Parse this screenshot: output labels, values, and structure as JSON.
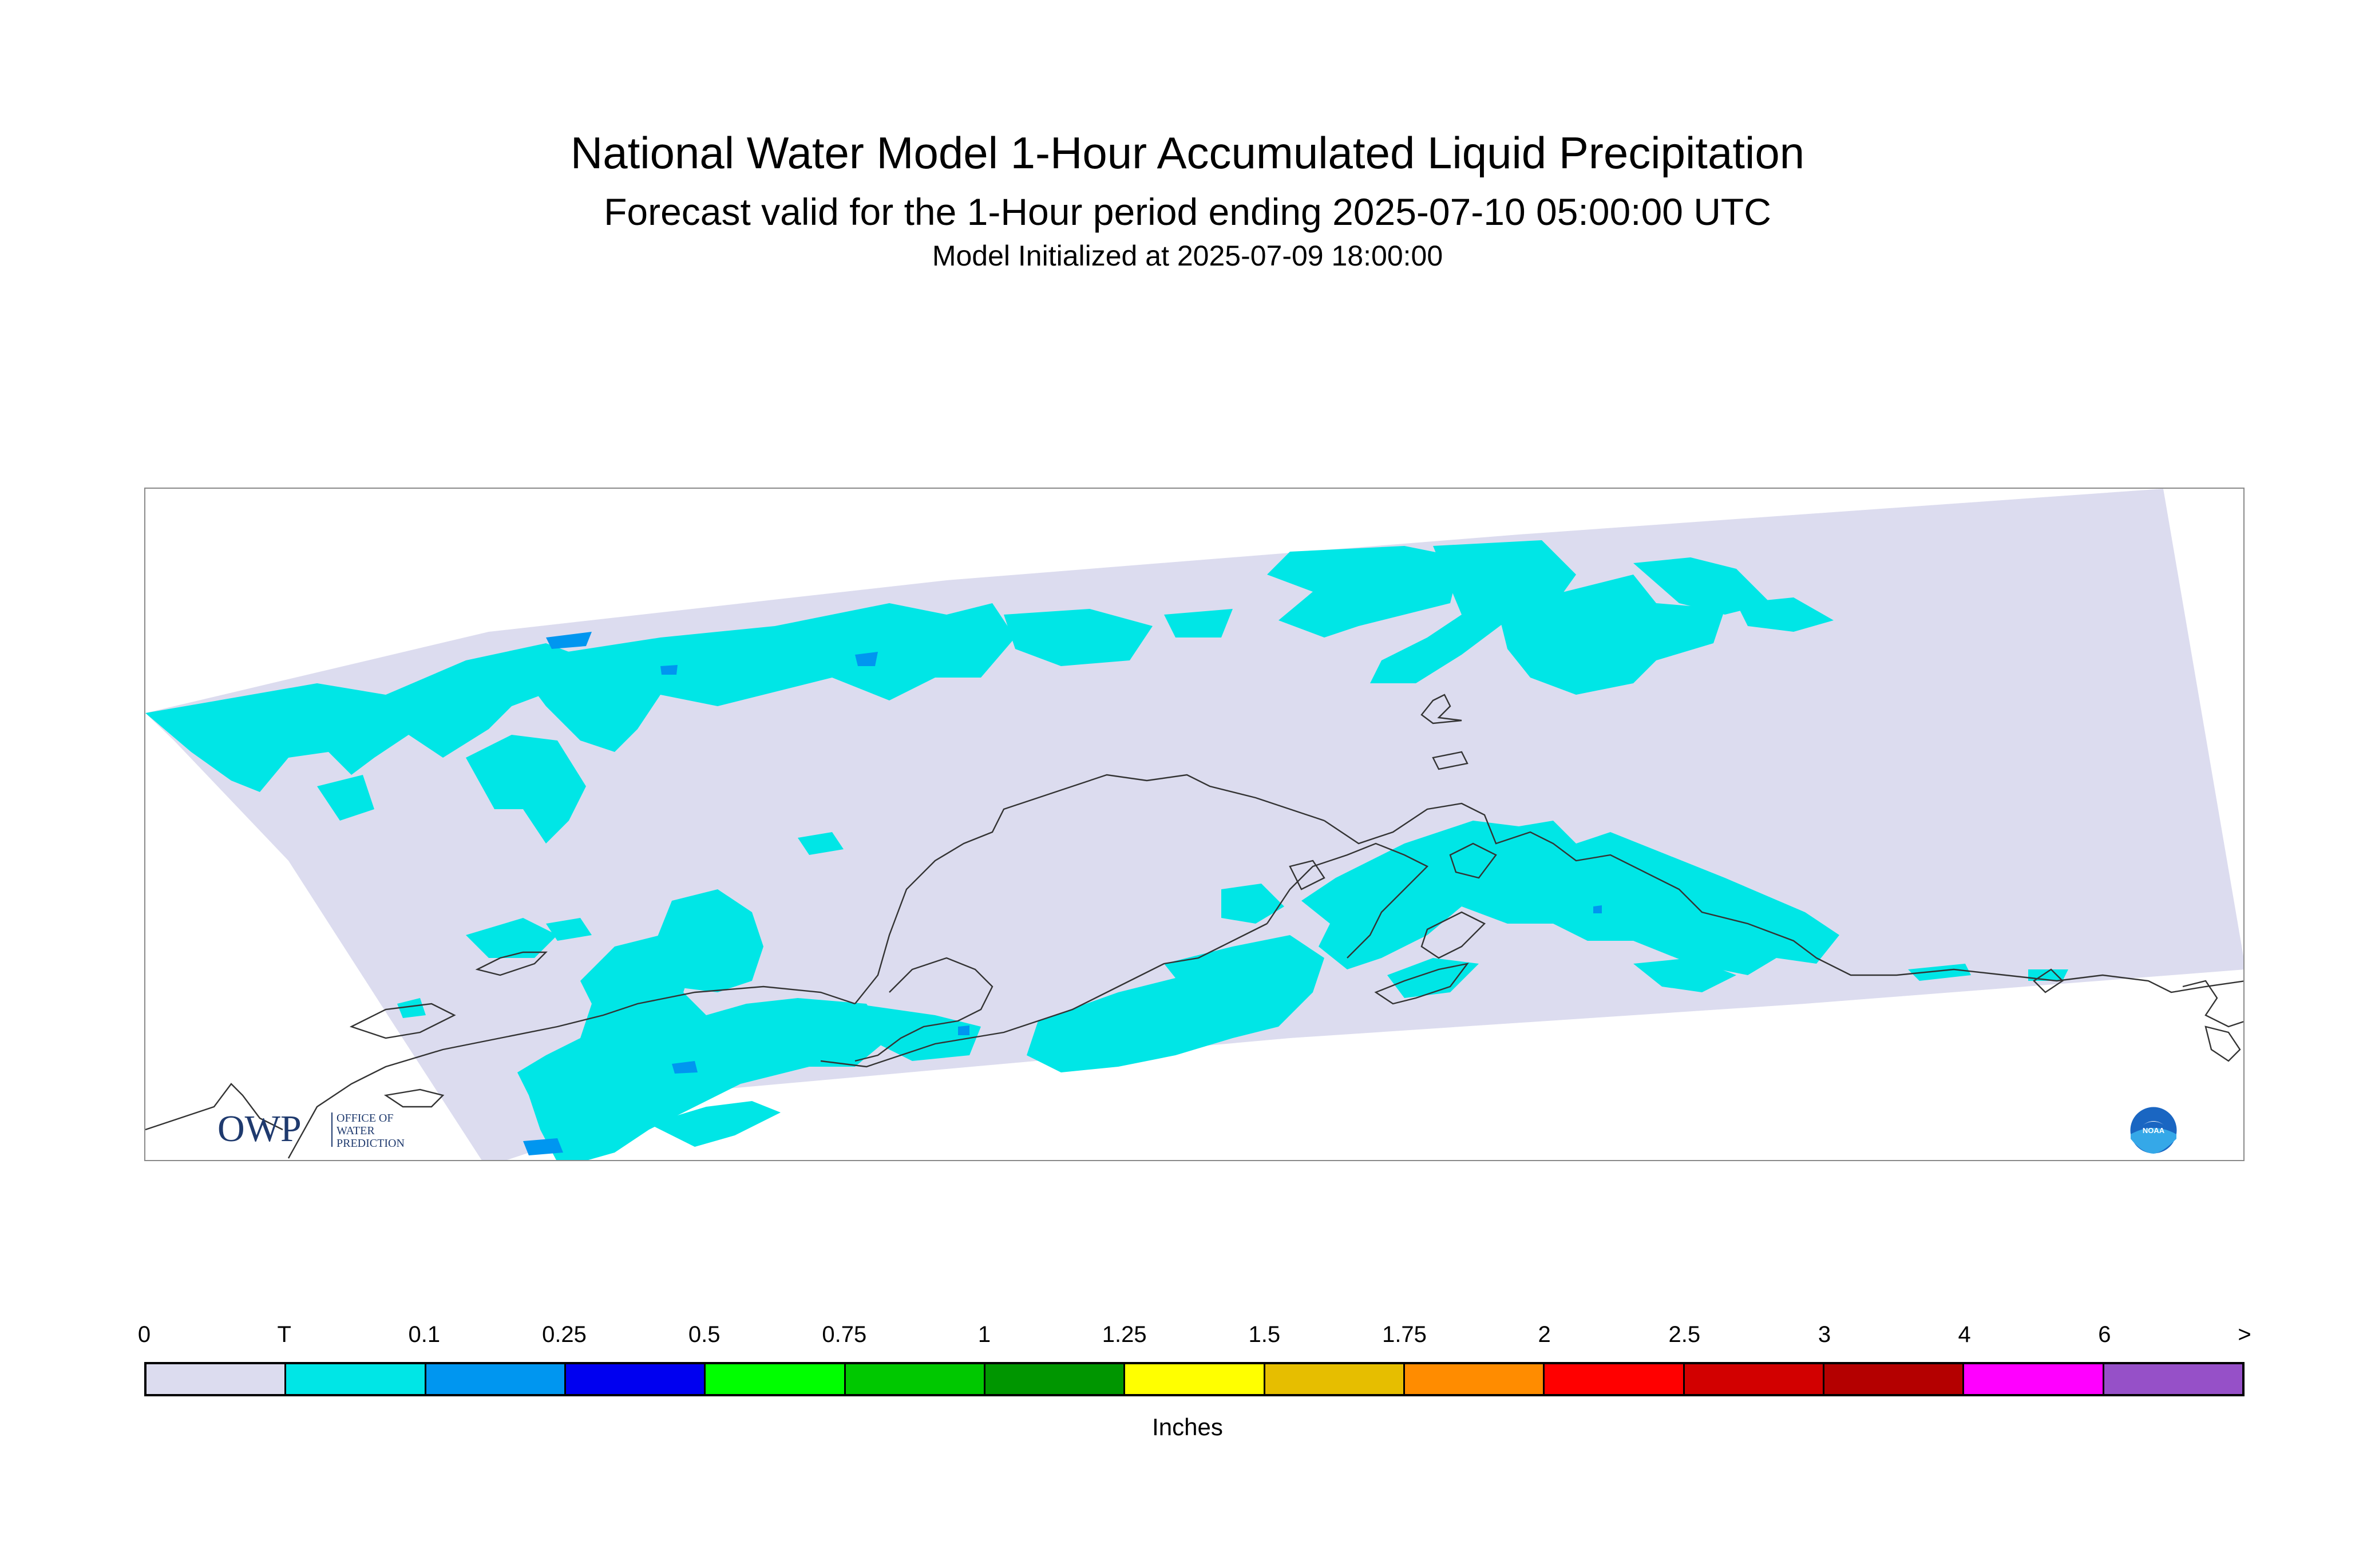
{
  "header": {
    "title": "National Water Model 1-Hour Accumulated Liquid Precipitation",
    "subtitle": "Forecast valid for the 1-Hour period ending 2025-07-10 05:00:00 UTC",
    "init": "Model Initialized at 2025-07-09 18:00:00"
  },
  "logos": {
    "owp_mark": "OWP",
    "owp_text": [
      "OFFICE OF",
      "WATER",
      "PREDICTION"
    ],
    "noaa_text": "NOAA"
  },
  "legend": {
    "units": "Inches",
    "ticks": [
      "0",
      "T",
      "0.1",
      "0.25",
      "0.5",
      "0.75",
      "1",
      "1.25",
      "1.5",
      "1.75",
      "2",
      "2.5",
      "3",
      "4",
      "6",
      ">"
    ],
    "colors": [
      "#dcdcef",
      "#00e6e6",
      "#0096f0",
      "#0000f0",
      "#00ff00",
      "#00c800",
      "#009600",
      "#ffff00",
      "#e6be00",
      "#ff8c00",
      "#ff0000",
      "#d20000",
      "#b40000",
      "#ff00ff",
      "#9650c8"
    ]
  },
  "map": {
    "domain_color": "#dcdcef",
    "precip_trace_color": "#00e6e6",
    "precip_light_color": "#0096f0",
    "coast_color": "#333333"
  }
}
